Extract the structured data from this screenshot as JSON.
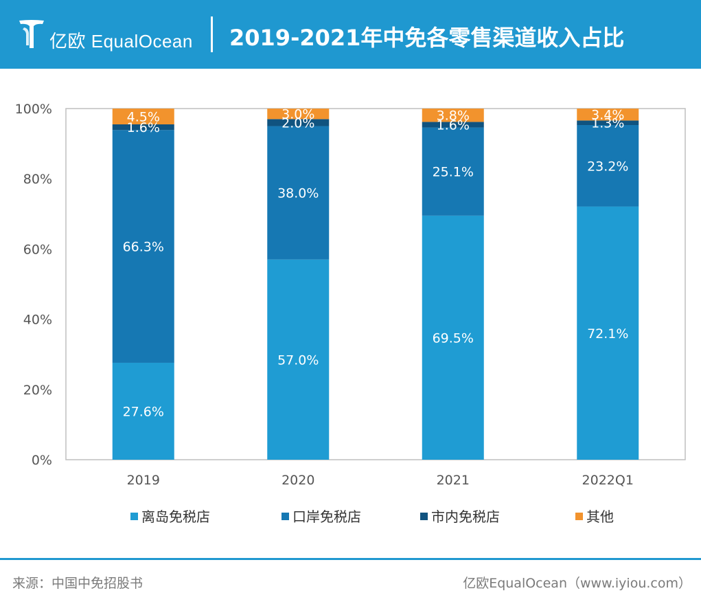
{
  "header": {
    "logo_text": "亿欧 EqualOcean",
    "title": "2019-2021年中免各零售渠道收入占比"
  },
  "colors": {
    "header_bg": "#1f98d0",
    "series": [
      "#1f9cd3",
      "#1678b3",
      "#10537f",
      "#f2932d"
    ]
  },
  "chart_data": {
    "type": "bar",
    "stacked": true,
    "title": "2019-2021年中免各零售渠道收入占比",
    "categories": [
      "2019",
      "2020",
      "2021",
      "2022Q1"
    ],
    "series": [
      {
        "name": "离岛免税店",
        "values": [
          27.6,
          57.0,
          69.5,
          72.1
        ],
        "labels": [
          "27.6%",
          "57.0%",
          "69.5%",
          "72.1%"
        ]
      },
      {
        "name": "口岸免税店",
        "values": [
          66.3,
          38.0,
          25.1,
          23.2
        ],
        "labels": [
          "66.3%",
          "38.0%",
          "25.1%",
          "23.2%"
        ]
      },
      {
        "name": "市内免税店",
        "values": [
          1.6,
          2.0,
          1.6,
          1.3
        ],
        "labels": [
          "1.6%",
          "2.0%",
          "1.6%",
          "1.3%"
        ]
      },
      {
        "name": "其他",
        "values": [
          4.5,
          3.0,
          3.8,
          3.4
        ],
        "labels": [
          "4.5%",
          "3.0%",
          "3.8%",
          "3.4%"
        ]
      }
    ],
    "yticks": [
      "0%",
      "20%",
      "40%",
      "60%",
      "80%",
      "100%"
    ],
    "ylim": [
      0,
      100
    ],
    "xlabel": "",
    "ylabel": "",
    "legend_position": "bottom"
  },
  "footer": {
    "source": "来源：中国中免招股书",
    "credit": "亿欧EqualOcean（www.iyiou.com）"
  }
}
